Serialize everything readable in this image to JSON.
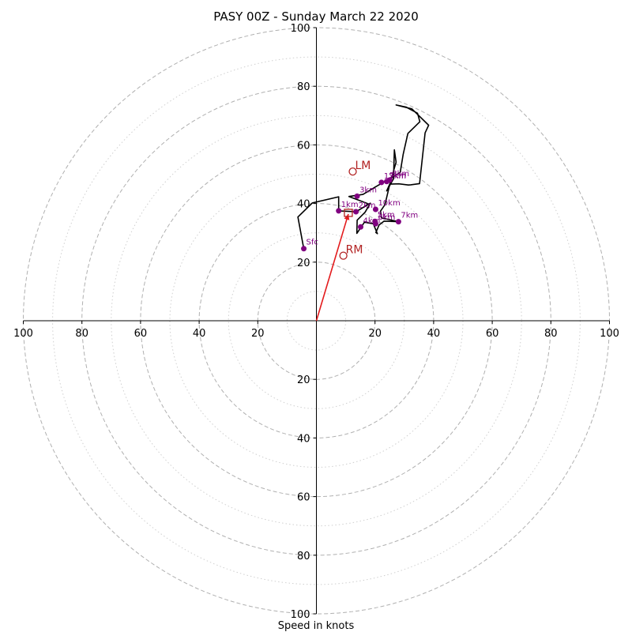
{
  "chart_data": {
    "type": "hodograph",
    "title": "PASY 00Z - Sunday March 22 2020",
    "xlabel": "Speed in knots",
    "axis_range": [
      -100,
      100
    ],
    "ring_speeds_major": [
      20,
      40,
      60,
      80,
      100
    ],
    "ring_speeds_minor": [
      10,
      30,
      50,
      70,
      90
    ],
    "x_ticks": [
      "100",
      "80",
      "60",
      "40",
      "20",
      "20",
      "40",
      "60",
      "80",
      "100"
    ],
    "y_ticks": [
      "100",
      "80",
      "60",
      "40",
      "20",
      "20",
      "40",
      "60",
      "80",
      "100"
    ],
    "x_tick_values": [
      -100,
      -80,
      -60,
      -40,
      -20,
      20,
      40,
      60,
      80,
      100
    ],
    "y_tick_values": [
      100,
      80,
      60,
      40,
      20,
      -20,
      -40,
      -60,
      -80,
      -100
    ],
    "hodograph_trace_kt": [
      [
        -4.3,
        24.6
      ],
      [
        -6.3,
        35.4
      ],
      [
        -1.4,
        40.2
      ],
      [
        7.6,
        42.3
      ],
      [
        7.6,
        37.5
      ],
      [
        13.5,
        37.2
      ],
      [
        18.4,
        40.1
      ],
      [
        16.6,
        37.0
      ],
      [
        13.9,
        34.3
      ],
      [
        13.8,
        29.8
      ],
      [
        16.4,
        33.6
      ],
      [
        19.4,
        33.1
      ],
      [
        20.8,
        29.7
      ],
      [
        20.3,
        30.1
      ],
      [
        21.4,
        32.7
      ],
      [
        23.1,
        34.0
      ],
      [
        28.0,
        33.8
      ],
      [
        22.2,
        35.1
      ],
      [
        21.9,
        37.4
      ],
      [
        23.4,
        39.6
      ],
      [
        25.3,
        47.7
      ],
      [
        27.2,
        54.1
      ],
      [
        26.6,
        58.3
      ],
      [
        26.3,
        48.4
      ],
      [
        24.0,
        44.3
      ],
      [
        25.0,
        46.6
      ],
      [
        28.1,
        46.7
      ],
      [
        31.4,
        46.3
      ],
      [
        32.2,
        46.4
      ],
      [
        35.2,
        46.8
      ],
      [
        37.1,
        64.1
      ],
      [
        38.3,
        66.7
      ],
      [
        32.6,
        72.3
      ],
      [
        27.2,
        73.6
      ],
      [
        30.6,
        72.9
      ],
      [
        34.5,
        70.8
      ],
      [
        35.3,
        67.9
      ],
      [
        31.2,
        63.9
      ],
      [
        29.6,
        56.7
      ],
      [
        28.6,
        50.6
      ],
      [
        20.4,
        45.8
      ],
      [
        15.9,
        43.1
      ],
      [
        11.1,
        42.4
      ],
      [
        18.2,
        39.7
      ],
      [
        17.6,
        38.4
      ]
    ],
    "height_labels": [
      {
        "label": "Sfc",
        "x": -4.3,
        "y": 24.6
      },
      {
        "label": "1km",
        "x": 7.6,
        "y": 37.5
      },
      {
        "label": "2km",
        "x": 13.5,
        "y": 37.2
      },
      {
        "label": "3km",
        "x": 13.9,
        "y": 42.5
      },
      {
        "label": "4km",
        "x": 15.1,
        "y": 32.0
      },
      {
        "label": "5km",
        "x": 20.0,
        "y": 33.9
      },
      {
        "label": "6km",
        "x": 20.2,
        "y": 33.1
      },
      {
        "label": "7km",
        "x": 28.0,
        "y": 33.8
      },
      {
        "label": "8km",
        "x": 25.0,
        "y": 48.0
      },
      {
        "label": "9km",
        "x": 24.0,
        "y": 47.5
      },
      {
        "label": "10km",
        "x": 20.2,
        "y": 38.0
      },
      {
        "label": "12km",
        "x": 22.2,
        "y": 47.2
      }
    ],
    "storm_motion": {
      "lm": {
        "label": "LM",
        "x": 12.4,
        "y": 50.9
      },
      "rm": {
        "label": "RM",
        "x": 9.2,
        "y": 22.2
      },
      "mean": {
        "x": 10.9,
        "y": 36.4
      }
    },
    "colors": {
      "trace": "#000000",
      "height_markers": "#800080",
      "storm_motion": "#b22222",
      "shear_vector": "#e31a1c",
      "rings": "#b0b0b0",
      "axes": "#000000"
    }
  }
}
